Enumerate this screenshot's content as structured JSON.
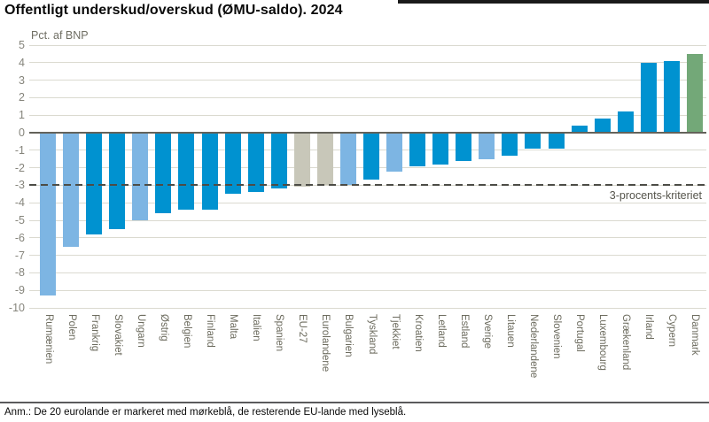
{
  "title": "Offentligt underskud/overskud (ØMU-saldo). 2024",
  "footer": {
    "note": "Anm.: De 20 eurolande er markeret med mørkeblå, de resterende EU-lande med lyseblå."
  },
  "chart_data": {
    "type": "bar",
    "title": "Offentligt underskud/overskud (ØMU-saldo). 2024",
    "ylabel": "Pct. af BNP",
    "xlabel": "",
    "ylim": [
      -10,
      5
    ],
    "ytick_step": 1,
    "ytick_labels": [
      "5",
      "4",
      "3",
      "2",
      "1",
      "0",
      "-1",
      "-2",
      "-3",
      "-4",
      "-5",
      "-6",
      "-7",
      "-8",
      "-9",
      "-10"
    ],
    "grid": true,
    "legend_position": "none",
    "reference_line": {
      "value": -3,
      "label": "3-procents-kriteriet",
      "style": "dashed"
    },
    "colors": {
      "euro": "#0092d0",
      "non_euro": "#7db5e3",
      "aggregate": "#c8c7b9",
      "denmark": "#73a878"
    },
    "color_meaning": {
      "euro": "eurolande (mørkeblå)",
      "non_euro": "øvrige EU-lande (lyseblå)",
      "aggregate": "EU/euro-aggregater (grå)",
      "denmark": "Danmark (grøn)"
    },
    "categories": [
      "Rumænien",
      "Polen",
      "Frankrig",
      "Slovakiet",
      "Ungarn",
      "Østrig",
      "Belgien",
      "Finland",
      "Malta",
      "Italien",
      "Spanien",
      "EU-27",
      "Eurolandene",
      "Bulgarien",
      "Tyskland",
      "Tjekkiet",
      "Kroatien",
      "Letland",
      "Estland",
      "Sverige",
      "Litauen",
      "Nederlandene",
      "Slovenien",
      "Portugal",
      "Luxembourg",
      "Grækenland",
      "Irland",
      "Cypern",
      "Danmark"
    ],
    "values": [
      -9.3,
      -6.5,
      -5.8,
      -5.5,
      -5.0,
      -4.6,
      -4.4,
      -4.4,
      -3.5,
      -3.4,
      -3.2,
      -3.1,
      -3.0,
      -3.0,
      -2.7,
      -2.2,
      -1.9,
      -1.8,
      -1.6,
      -1.5,
      -1.3,
      -0.9,
      -0.9,
      0.4,
      0.8,
      1.2,
      4.0,
      4.1,
      4.5
    ],
    "bars": [
      {
        "label": "Rumænien",
        "value": -9.3,
        "group": "non_euro"
      },
      {
        "label": "Polen",
        "value": -6.5,
        "group": "non_euro"
      },
      {
        "label": "Frankrig",
        "value": -5.8,
        "group": "euro"
      },
      {
        "label": "Slovakiet",
        "value": -5.5,
        "group": "euro"
      },
      {
        "label": "Ungarn",
        "value": -5.0,
        "group": "non_euro"
      },
      {
        "label": "Østrig",
        "value": -4.6,
        "group": "euro"
      },
      {
        "label": "Belgien",
        "value": -4.4,
        "group": "euro"
      },
      {
        "label": "Finland",
        "value": -4.4,
        "group": "euro"
      },
      {
        "label": "Malta",
        "value": -3.5,
        "group": "euro"
      },
      {
        "label": "Italien",
        "value": -3.4,
        "group": "euro"
      },
      {
        "label": "Spanien",
        "value": -3.2,
        "group": "euro"
      },
      {
        "label": "EU-27",
        "value": -3.1,
        "group": "aggregate"
      },
      {
        "label": "Eurolandene",
        "value": -3.0,
        "group": "aggregate"
      },
      {
        "label": "Bulgarien",
        "value": -3.0,
        "group": "non_euro"
      },
      {
        "label": "Tyskland",
        "value": -2.7,
        "group": "euro"
      },
      {
        "label": "Tjekkiet",
        "value": -2.2,
        "group": "non_euro"
      },
      {
        "label": "Kroatien",
        "value": -1.9,
        "group": "euro"
      },
      {
        "label": "Letland",
        "value": -1.8,
        "group": "euro"
      },
      {
        "label": "Estland",
        "value": -1.6,
        "group": "euro"
      },
      {
        "label": "Sverige",
        "value": -1.5,
        "group": "non_euro"
      },
      {
        "label": "Litauen",
        "value": -1.3,
        "group": "euro"
      },
      {
        "label": "Nederlandene",
        "value": -0.9,
        "group": "euro"
      },
      {
        "label": "Slovenien",
        "value": -0.9,
        "group": "euro"
      },
      {
        "label": "Portugal",
        "value": 0.4,
        "group": "euro"
      },
      {
        "label": "Luxembourg",
        "value": 0.8,
        "group": "euro"
      },
      {
        "label": "Grækenland",
        "value": 1.2,
        "group": "euro"
      },
      {
        "label": "Irland",
        "value": 4.0,
        "group": "euro"
      },
      {
        "label": "Cypern",
        "value": 4.1,
        "group": "euro"
      },
      {
        "label": "Danmark",
        "value": 4.5,
        "group": "denmark"
      }
    ]
  }
}
